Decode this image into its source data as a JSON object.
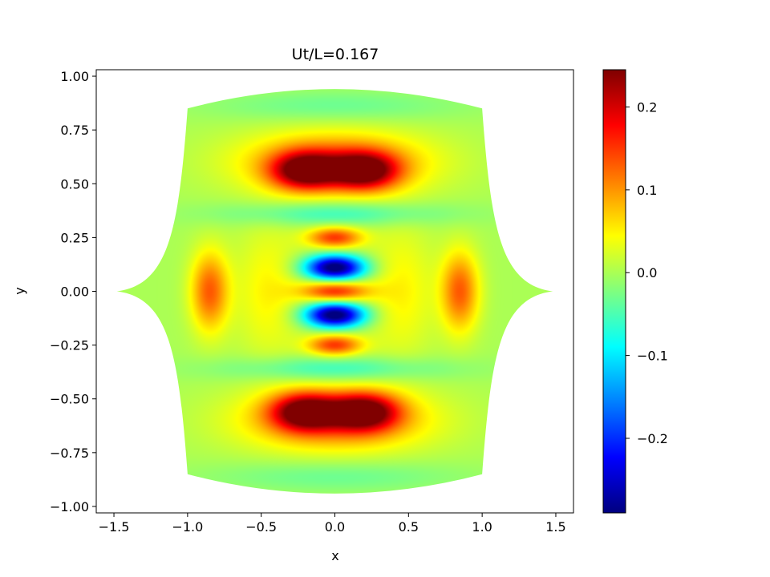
{
  "chart_data": {
    "type": "heatmap",
    "title": "Ut/L=0.167",
    "xlabel": "x",
    "ylabel": "y",
    "xlim": [
      -1.62,
      1.62
    ],
    "ylim": [
      -1.03,
      1.03
    ],
    "x_ticks": [
      -1.5,
      -1.0,
      -0.5,
      0.0,
      0.5,
      1.0,
      1.5
    ],
    "x_tick_labels": [
      "−1.5",
      "−1.0",
      "−0.5",
      "0.0",
      "0.5",
      "1.0",
      "1.5"
    ],
    "y_ticks": [
      -1.0,
      -0.75,
      -0.5,
      -0.25,
      0.0,
      0.25,
      0.5,
      0.75,
      1.0
    ],
    "y_tick_labels": [
      "−1.00",
      "−0.75",
      "−0.50",
      "−0.25",
      "0.00",
      "0.25",
      "0.50",
      "0.75",
      "1.00"
    ],
    "colormap": "jet",
    "colorbar": {
      "min": -0.29,
      "max": 0.245,
      "ticks": [
        -0.2,
        -0.1,
        0.0,
        0.1,
        0.2
      ],
      "tick_labels": [
        "−0.2",
        "−0.1",
        "0.0",
        "0.1",
        "0.2"
      ]
    },
    "domain_boundary": {
      "corners": [
        [
          -1.0,
          0.85
        ],
        [
          1.0,
          0.85
        ],
        [
          1.0,
          -0.85
        ],
        [
          -1.0,
          -0.85
        ]
      ],
      "top_bottom_peak_y": 0.94,
      "cusp_tips": [
        [
          -1.48,
          0.0
        ],
        [
          1.48,
          0.0
        ]
      ]
    },
    "features": [
      {
        "x": -0.2,
        "y": 0.56,
        "value": 0.23,
        "sx": 0.16,
        "sy": 0.06
      },
      {
        "x": 0.2,
        "y": 0.56,
        "value": 0.23,
        "sx": 0.16,
        "sy": 0.06
      },
      {
        "x": -0.2,
        "y": -0.56,
        "value": 0.23,
        "sx": 0.16,
        "sy": 0.06
      },
      {
        "x": 0.2,
        "y": -0.56,
        "value": 0.23,
        "sx": 0.16,
        "sy": 0.06
      },
      {
        "x": 0.0,
        "y": 0.6,
        "value": 0.12,
        "sx": 0.45,
        "sy": 0.1
      },
      {
        "x": 0.0,
        "y": -0.6,
        "value": 0.12,
        "sx": 0.45,
        "sy": 0.1
      },
      {
        "x": 0.0,
        "y": 0.11,
        "value": -0.31,
        "sx": 0.14,
        "sy": 0.04
      },
      {
        "x": 0.0,
        "y": -0.11,
        "value": -0.31,
        "sx": 0.14,
        "sy": 0.04
      },
      {
        "x": 0.0,
        "y": 0.0,
        "value": 0.16,
        "sx": 0.16,
        "sy": 0.035
      },
      {
        "x": 0.0,
        "y": 0.25,
        "value": 0.15,
        "sx": 0.13,
        "sy": 0.035
      },
      {
        "x": 0.0,
        "y": -0.25,
        "value": 0.15,
        "sx": 0.13,
        "sy": 0.035
      },
      {
        "x": -0.85,
        "y": 0.0,
        "value": 0.13,
        "sx": 0.09,
        "sy": 0.13
      },
      {
        "x": 0.85,
        "y": 0.0,
        "value": 0.13,
        "sx": 0.09,
        "sy": 0.13
      },
      {
        "x": -0.45,
        "y": 0.0,
        "value": 0.05,
        "sx": 0.16,
        "sy": 0.22
      },
      {
        "x": 0.45,
        "y": 0.0,
        "value": 0.05,
        "sx": 0.16,
        "sy": 0.22
      },
      {
        "x": 0.0,
        "y": 0.36,
        "value": -0.06,
        "sx": 0.55,
        "sy": 0.04
      },
      {
        "x": 0.0,
        "y": -0.36,
        "value": -0.06,
        "sx": 0.55,
        "sy": 0.04
      },
      {
        "x": 0.0,
        "y": 0.86,
        "value": -0.035,
        "sx": 0.6,
        "sy": 0.05
      },
      {
        "x": 0.0,
        "y": -0.86,
        "value": -0.035,
        "sx": 0.6,
        "sy": 0.05
      }
    ]
  }
}
